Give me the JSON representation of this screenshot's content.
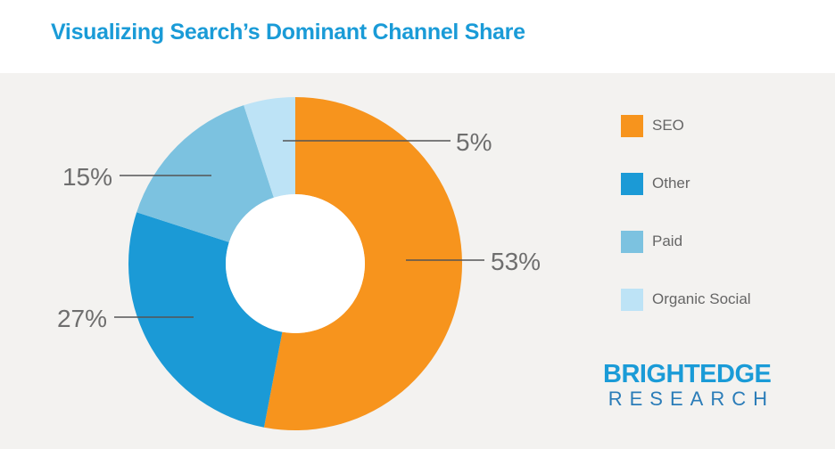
{
  "title": "Visualizing Search’s Dominant Channel Share",
  "chart_data": {
    "type": "pie",
    "subtype": "donut",
    "title": "Visualizing Search’s Dominant Channel Share",
    "legend_position": "right",
    "series": [
      {
        "name": "SEO",
        "value": 53,
        "label": "53%",
        "color": "#f7941d"
      },
      {
        "name": "Other",
        "value": 27,
        "label": "27%",
        "color": "#1b9ad6"
      },
      {
        "name": "Paid",
        "value": 15,
        "label": "15%",
        "color": "#7cc2e0"
      },
      {
        "name": "Organic Social",
        "value": 5,
        "label": "5%",
        "color": "#bde3f6"
      }
    ]
  },
  "legend": [
    {
      "label": "SEO",
      "color": "#f7941d"
    },
    {
      "label": "Other",
      "color": "#1b9ad6"
    },
    {
      "label": "Paid",
      "color": "#7cc2e0"
    },
    {
      "label": "Organic Social",
      "color": "#bde3f6"
    }
  ],
  "brand": {
    "line1": "BRIGHTEDGE",
    "line2": "RESEARCH"
  }
}
